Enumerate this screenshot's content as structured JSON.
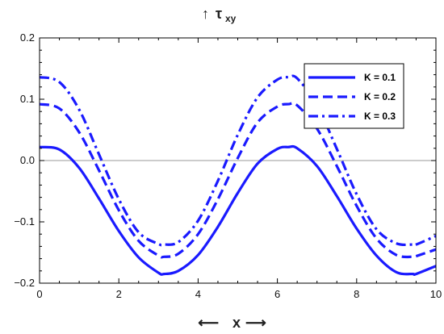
{
  "chart_data": {
    "type": "line",
    "ylabel": "τ",
    "ylabel_subscript": "xy",
    "ylabel_arrow": "↑",
    "xlabel": "x",
    "xlabel_arrow_left": "⟵",
    "xlabel_arrow_right": "⟶",
    "xlim": [
      0,
      10
    ],
    "ylim": [
      -0.2,
      0.2
    ],
    "x_ticks": [
      0,
      2,
      4,
      6,
      8,
      10
    ],
    "x_tick_labels": [
      "0",
      "2",
      "4",
      "6",
      "8",
      "10"
    ],
    "y_ticks": [
      -0.2,
      -0.1,
      0.0,
      0.1,
      0.2
    ],
    "y_tick_labels": [
      "−0.2",
      "−0.1",
      "0.0",
      "0.1",
      "0.2"
    ],
    "grid": false,
    "zero_line": true,
    "legend_position": "top-right",
    "line_color": "#1a1aff",
    "series": [
      {
        "name": "K = 0.1",
        "style": "solid",
        "x": [
          0,
          0.5,
          1,
          1.5,
          2,
          2.5,
          3,
          3.14,
          3.5,
          4,
          4.5,
          5,
          5.5,
          6,
          6.28,
          6.5,
          7,
          7.5,
          8,
          8.5,
          9,
          9.42,
          9.5,
          10
        ],
        "y": [
          0.022,
          0.018,
          -0.012,
          -0.062,
          -0.115,
          -0.158,
          -0.183,
          -0.185,
          -0.18,
          -0.154,
          -0.108,
          -0.053,
          -0.005,
          0.019,
          0.022,
          0.02,
          -0.009,
          -0.058,
          -0.111,
          -0.155,
          -0.182,
          -0.185,
          -0.185,
          -0.172
        ]
      },
      {
        "name": "K = 0.2",
        "style": "dashed",
        "x": [
          0,
          0.5,
          1,
          1.5,
          2,
          2.5,
          3,
          3.14,
          3.5,
          4,
          4.5,
          5,
          5.5,
          6,
          6.28,
          6.5,
          7,
          7.5,
          8,
          8.5,
          9,
          9.42,
          9.5,
          10
        ],
        "y": [
          0.092,
          0.085,
          0.046,
          -0.016,
          -0.081,
          -0.131,
          -0.155,
          -0.157,
          -0.152,
          -0.12,
          -0.063,
          0.004,
          0.062,
          0.088,
          0.092,
          0.09,
          0.052,
          -0.009,
          -0.074,
          -0.127,
          -0.154,
          -0.157,
          -0.156,
          -0.145
        ]
      },
      {
        "name": "K = 0.3",
        "style": "dashdot",
        "x": [
          0,
          0.5,
          1,
          1.5,
          2,
          2.5,
          3,
          3.14,
          3.5,
          4,
          4.5,
          5,
          5.5,
          6,
          6.28,
          6.5,
          7,
          7.5,
          8,
          8.5,
          9,
          9.42,
          9.5,
          10
        ],
        "y": [
          0.136,
          0.128,
          0.083,
          0.01,
          -0.063,
          -0.117,
          -0.136,
          -0.137,
          -0.133,
          -0.098,
          -0.033,
          0.042,
          0.103,
          0.132,
          0.136,
          0.134,
          0.09,
          0.019,
          -0.055,
          -0.112,
          -0.135,
          -0.137,
          -0.137,
          -0.123
        ]
      }
    ]
  }
}
